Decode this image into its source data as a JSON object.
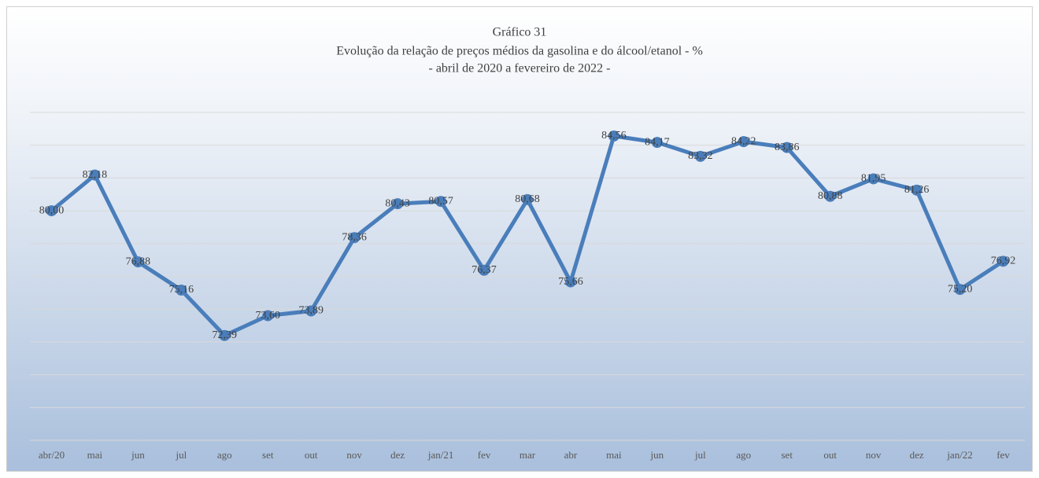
{
  "chart_data": {
    "type": "line",
    "title": "Gráfico 31",
    "subtitle": [
      "Evolução da relação de preços médios da gasolina e do álcool/etanol - %",
      "- abril de 2020 a fevereiro de 2022 -"
    ],
    "categories": [
      "abr/20",
      "mai",
      "jun",
      "jul",
      "ago",
      "set",
      "out",
      "nov",
      "dez",
      "jan/21",
      "fev",
      "mar",
      "abr",
      "mai",
      "jun",
      "jul",
      "ago",
      "set",
      "out",
      "nov",
      "dez",
      "jan/22",
      "fev"
    ],
    "series": [
      {
        "color": "#4a7ebb",
        "values": [
          80.0,
          82.18,
          76.88,
          75.16,
          72.39,
          73.6,
          73.89,
          78.36,
          80.43,
          80.57,
          76.37,
          80.68,
          75.66,
          84.56,
          84.17,
          83.32,
          84.22,
          83.86,
          80.88,
          81.95,
          81.26,
          75.2,
          76.92
        ],
        "value_labels": [
          "80,00",
          "82,18",
          "76,88",
          "75,16",
          "72,39",
          "73,60",
          "73,89",
          "78,36",
          "80,43",
          "80,57",
          "76,37",
          "80,68",
          "75,66",
          "84,56",
          "84,17",
          "83,32",
          "84,22",
          "83,86",
          "80,88",
          "81,95",
          "81,26",
          "75,20",
          "76,92"
        ]
      }
    ],
    "ylim": [
      66,
      86
    ],
    "yticks": [
      66,
      68,
      70,
      72,
      74,
      76,
      78,
      80,
      82,
      84,
      86
    ],
    "show_ytick_labels": false,
    "grid": true
  }
}
